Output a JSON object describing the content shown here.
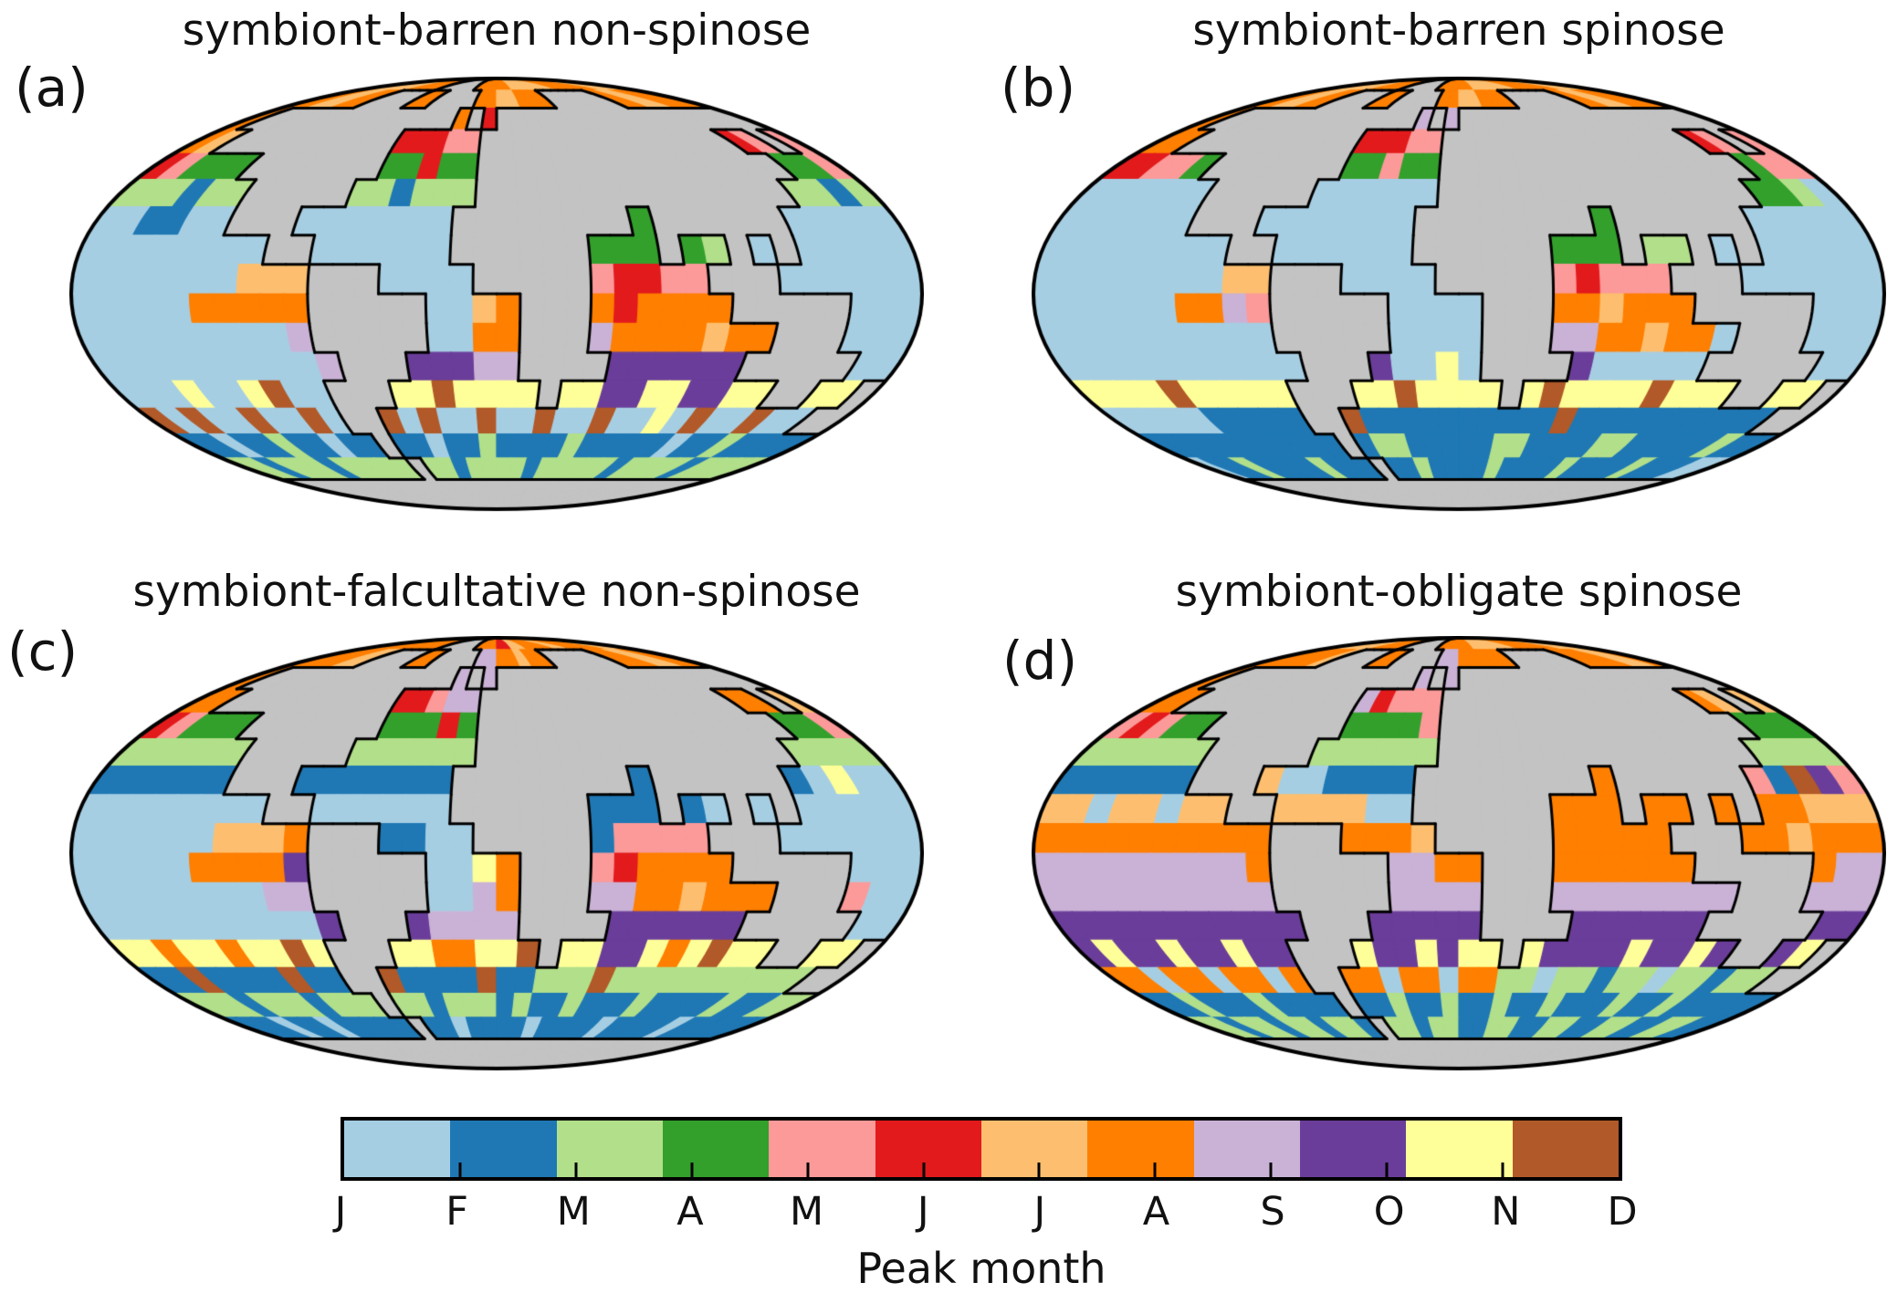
{
  "figure": {
    "land_color": "#c3c3c3",
    "coast_color": "#000000",
    "background_color": "#ffffff"
  },
  "chart_data": {
    "type": "heatmap",
    "subtype": "mollweide-global-grid-maps",
    "projection": "mollweide",
    "grid_resolution_degrees": 10,
    "legend": {
      "label": "Peak month",
      "position": "bottom"
    },
    "month_categories": [
      "J",
      "F",
      "M",
      "A",
      "M",
      "J",
      "J",
      "A",
      "S",
      "O",
      "N",
      "D"
    ],
    "month_colors": [
      "#a6cee3",
      "#1f78b4",
      "#b2df8a",
      "#33a02c",
      "#fb9a99",
      "#e31a1c",
      "#fdbf6f",
      "#ff7f00",
      "#cab2d6",
      "#6a3d9a",
      "#ffff99",
      "#b15928"
    ],
    "grid_encoding": "rows are 10-degree latitude bands from 90N to 90S; 36 columns of 10-degree longitude from 180W to 180E; letters a-l = peak month Jan-Dec; X = land",
    "land_mask": [
      "..........XXXXX.....................",
      "......XXXX..XXXX.......XXXXXX.......",
      ".XXXXXXXXXXXXXX.X.XXXXXXXXXXXXXXXXXX",
      "..XXXXXXXXXX.....XXXXXXXXXXXXXXX..X.",
      ".....XXXXXXX.....XXXXXXXXXXXXXXXX...",
      "......XXXXX......XXXXXXXXXXXXXXX....",
      "......XXX.......XXXXXXXX.XXXXXX.....",
      "........XX......XXXXXX...X..X.X.....",
      "..........XXX....XXXXX.....XXX......",
      "..........XXXXX....XXX......XXXXX...",
      "..........XXXXX....XXX........XXX...",
      "...........XXX.....XXXX......XXXXX..",
      "..........XXX.......X..........XX..X",
      "..........XX......................XX",
      "...........X........................",
      "............X.......................",
      "XXXXXXXXXXXXXXXXXXXXXXXXXXXXXXXXXXXX",
      "XXXXXXXXXXXXXXXXXXXXXXXXXXXXXXXXXXXX"
    ],
    "panels": [
      {
        "id": "a",
        "letter": "(a)",
        "title": "symbiont-barren non-spinose",
        "grid": [
          "gggggghhhhXXXXXhhhhhgggggghhhhhhgggg",
          "hhgghhXXXXhhXXXXhhgghhhXXXXXXhhgghhh",
          "hXXXXXXXXXXXXXXhXfXXXXXXXXXXXXXXXXXX",
          "hgXXXXXXXXXXfffeeXXXXXXXXXXXXXXXfeXe",
          "fedddXXXXXXXddfddXXXXXXXXXXXXXXXXdde",
          "cccbccXXXXXccbcccXXXXXXXXXXXXXXXccbc",
          "aabbaaXXXaaaaaaaXXXXXXXXdXXXXXXaaaaa",
          "aaaaaaaaXXaaaaaaXXXXXXdddXdcXaXaaaaa",
          "aaaaaaagggXXXaaaaXXXXXeffeeXXXaaaaaa",
          "aaaaahhhhhXXXXXaaghXXXhfhhhhXXXXXaaa",
          "aaaaaaaaaiXXXXXaahhXXXihhhhghhXXXaaa",
          "aaaaaaaaaaiXXXjjjiiXXXXjjjjjjXXXXXaa",
          "aaakaaklaaXXXkklkkkkXkkjjkkjjkkXXkkX",
          "lalaalaalaXXlalaalaalaalaakalaalaaXX",
          "bbabbcbbabbXbbabbcbbbbcbbbbbabbcbbbb",
          "ccbcccbcccccXccbccccbcccccbccccbcccc",
          "XXXXXXXXXXXXXXXXXXXXXXXXXXXXXXXXXXXX",
          "XXXXXXXXXXXXXXXXXXXXXXXXXXXXXXXXXXXX"
        ]
      },
      {
        "id": "b",
        "letter": "(b)",
        "title": "symbiont-barren spinose",
        "grid": [
          "gggggghhhhXXXXXhhhhhgggggghhhhhhgggg",
          "hhgghhXXXXhhXXXXhhgghhhXXXXXXhhgghhh",
          "hXXXXXXXXXXXXXXiXiXXXXXXXXXXXXXXXXXX",
          "hhXXXXXXXXXXfffeeXXXXXXXXXXXXXXXfeXe",
          "ffeedXXXXXXXddeddXXXXXXXXXXXXXXXXdee",
          "aaaaaaXXXXXaaaaaaXXXXXXXXXXXXXXXddca",
          "aaaaaaXXXaaaaaaaXXXXXXXXdXXXXXXaaaaa",
          "aaaaaaaaXXaaaaaaXXXXXXdddXccXaXaaaaa",
          "aaaaaaaaggXXXaaaaXXXXXefeeeXXXaaaaaa",
          "aaaaaahhieXXXXXaaaaXXXhhghhhXXXXXaaa",
          "aaaaaaaaaaXXXXXaaaaXXXiihhghhaXXXaaa",
          "aaaaaaaaaaaXXXjaakaXXXXjaaaaaXXXXXaa",
          "kkkklkkkkkXXXkklkkkkXklkkkklkkkXXkkX",
          "aaaaabbbbbXXlbbbbbbbbbblbbbbbbbbbbXX",
          "bbbbbbbbbbbXbccbbbbbccbbbbccbbbbbcbb",
          "abbcbbbbcbbbXbbcbbbbcbbbbcbbbbcbbbaa",
          "XXXXXXXXXXXXXXXXXXXXXXXXXXXXXXXXXXXX",
          "XXXXXXXXXXXXXXXXXXXXXXXXXXXXXXXXXXXX"
        ]
      },
      {
        "id": "c",
        "letter": "(c)",
        "title": "symbiont-falcultative non-spinose",
        "grid": [
          "gghhhhhhhhXXXXXhhhffgghhhhgghhhhhggg",
          "hhhhggXXXXhhXXXXiihhghhXXXXXXhhhgghh",
          "hXXXXXXXXXXXXXXiXiXXXXXXXXXXXXXXXXXX",
          "hhXXXXXXXXXXffeiiXXXXXXXXXXXXXXXhhXg",
          "fedddXXXXXXXdddfdXXXXXXXXXXXXXXXXdde",
          "ccccccXXXXXccccccXXXXXXXXXXXXXXXcccc",
          "bbbbbbXXXbbbbbbbXXXXXXXXbXXXXXXbakaa",
          "aaaaaaaaXXaaaaaaXXXXXXbbbXbaXaXaaaaa",
          "aaaaaaggghXXXbbaaXXXXXbeeeeXXXaaaaaa",
          "aaaaahhhhjXXXXXaakhXXXefhhhhXXXXXaaa",
          "aaaaaaaaiiXXXXXaaihXXXiihhghhhXXXeaa",
          "aaaaaaaaaajXXXjiiiiXXXXjjjjjjXXXXXaa",
          "kkhkkhkklkXXXkkhhkklXkkjjkhklkkXXkkX",
          "bblbbbblbbXXlbbbblbbccclccccccccccXX",
          "cccbcccbcccXccbcccbcbbcbbbcbbbbcbbcc",
          "bbbabbabbbbbXbbabbbbabbbbabbbbabbbbb",
          "XXXXXXXXXXXXXXXXXXXXXXXXXXXXXXXXXXXX",
          "XXXXXXXXXXXXXXXXXXXXXXXXXXXXXXXXXXXX"
        ]
      },
      {
        "id": "d",
        "letter": "(d)",
        "title": "symbiont-obligate spinose",
        "grid": [
          "gggggghhhhXXXXXhhhhhgggggghhhhhhgggg",
          "hhhhhgXXXXhhXXXXiihhhhhXXXXXXhhhhggh",
          "hXXXXXXXXXXXXXXiXiXXXXXXXXXXXXXXXXXX",
          "hhXXXXXXXXXXifeeeXXXXXXXXXXXXXXXhgXg",
          "efeddXXXXXXXddddeXXXXXXXXXXXXXXXXddd",
          "ccccccXXXXXccccccXXXXXXXXXXXXXXXcccc",
          "bbbbbbXXXgaabbbbXXXXXXXXhXXXXXXeblje",
          "ggaggaggXXggggaaXXXXXXhhhXhhXhXhhggg",
          "hhhhhhhhhhXXXhhhgXXXXXhhhhhXXXhhghhh",
          "iiiiiiiiihXXXXXiihhXXXhhhhhhXXXXXhii",
          "iiiiiiiiiiXXXXXiiiiXXXiiiiiiiiXXXiii",
          "jjjjjjjjjjjXXXjjjjjXXXXjjjjjjXXXXXjj",
          "jkjjkjjkjjXXXkjjkjkkXkjjjjkjjkjXXjkX",
          "hhahhahhahXXhhahhahhccaccbccaccbccXX",
          "bbcbbbcbbbbXbbcbbcbbcbbcbbbcbbcbbbbb",
          "ccbccbccbccbXccbccbbccbbccbbccbbccbb",
          "XXXXXXXXXXXXXXXXXXXXXXXXXXXXXXXXXXXX",
          "XXXXXXXXXXXXXXXXXXXXXXXXXXXXXXXXXXXX"
        ]
      }
    ]
  },
  "colorbar": {
    "label": "Peak month",
    "tick_labels": [
      "J",
      "F",
      "M",
      "A",
      "M",
      "J",
      "J",
      "A",
      "S",
      "O",
      "N",
      "D"
    ]
  }
}
